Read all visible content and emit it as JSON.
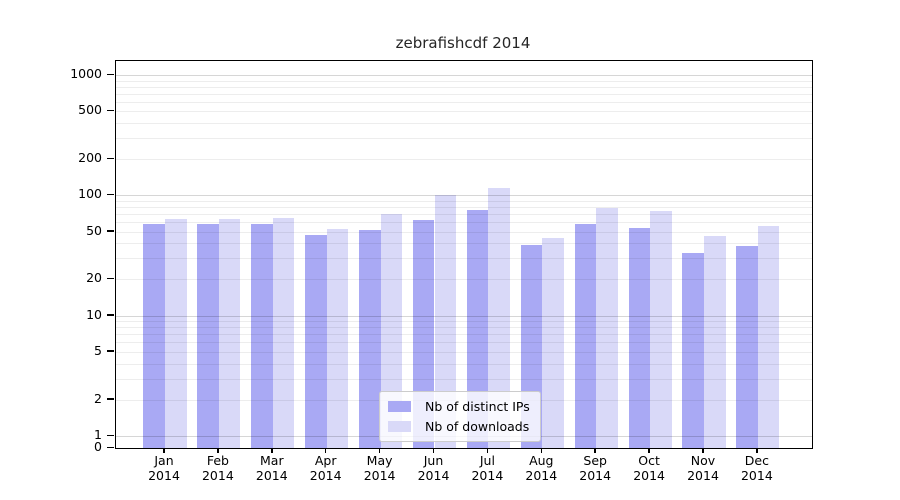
{
  "chart_data": {
    "type": "bar",
    "title": "zebrafishcdf 2014",
    "year_label": "2014",
    "categories": [
      "Jan",
      "Feb",
      "Mar",
      "Apr",
      "May",
      "Jun",
      "Jul",
      "Aug",
      "Sep",
      "Oct",
      "Nov",
      "Dec"
    ],
    "series": [
      {
        "name": "Nb of distinct IPs",
        "color": "#a9a9f4",
        "values": [
          58,
          58,
          58,
          47,
          52,
          62,
          76,
          39,
          58,
          54,
          33,
          38
        ]
      },
      {
        "name": "Nb of downloads",
        "color": "#d9d9f8",
        "values": [
          64,
          64,
          65,
          53,
          70,
          101,
          116,
          44,
          78,
          74,
          46,
          56
        ]
      }
    ],
    "y_axis": {
      "scale": "log",
      "ticks": [
        0,
        1,
        2,
        5,
        10,
        20,
        50,
        100,
        200,
        500,
        1000
      ]
    },
    "xlabel": "",
    "ylabel": "",
    "grid": true,
    "legend_position": "bottom-center",
    "colors": {
      "grid_major": "rgba(0,0,0,0.16)",
      "grid_minor": "rgba(0,0,0,0.07)",
      "axis": "#000000",
      "title_text": "#262626"
    }
  }
}
